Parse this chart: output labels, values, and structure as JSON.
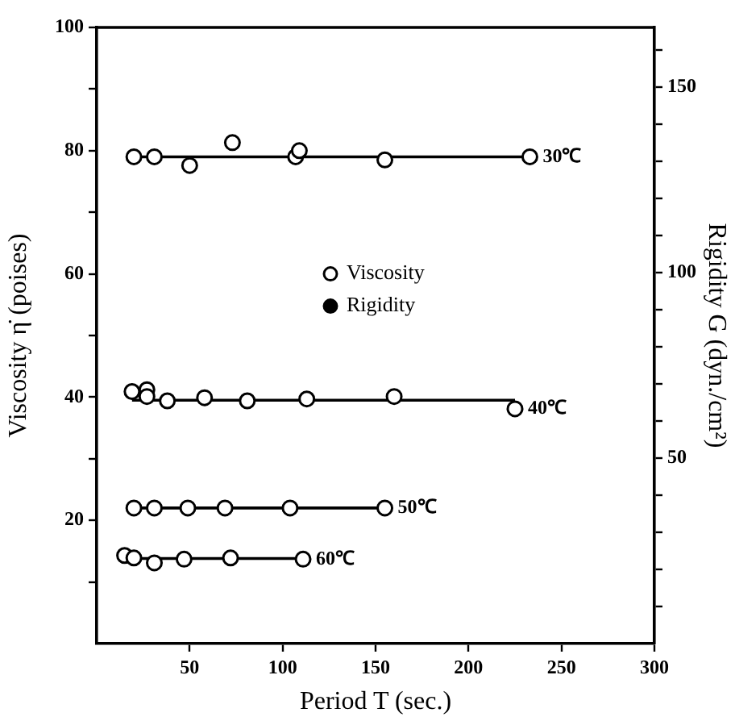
{
  "chart_data": {
    "type": "scatter",
    "xlabel": "Period T (sec.)",
    "ylabel": "Viscosity η̇ (poises)",
    "y2label": "Rigidity G (dyn./cm²)",
    "xlim": [
      0,
      300
    ],
    "xticks": [
      50,
      100,
      150,
      200,
      250,
      300
    ],
    "ylim": [
      0,
      100
    ],
    "yticks": [
      {
        "value": 10,
        "label": null
      },
      20,
      {
        "value": 30,
        "label": null
      },
      40,
      {
        "value": 50,
        "label": null
      },
      60,
      {
        "value": 70,
        "label": null
      },
      80,
      {
        "value": 90,
        "label": null
      },
      100
    ],
    "y2lim": [
      0,
      166
    ],
    "y2ticks": [
      {
        "value": 10,
        "label": null
      },
      {
        "value": 20,
        "label": null
      },
      {
        "value": 30,
        "label": null
      },
      {
        "value": 40,
        "label": null
      },
      50,
      {
        "value": 60,
        "label": null
      },
      {
        "value": 70,
        "label": null
      },
      {
        "value": 80,
        "label": null
      },
      {
        "value": 90,
        "label": null
      },
      100,
      {
        "value": 110,
        "label": null
      },
      {
        "value": 120,
        "label": null
      },
      {
        "value": 130,
        "label": null
      },
      {
        "value": 140,
        "label": null
      },
      150,
      {
        "value": 160,
        "label": null
      }
    ],
    "grid": false,
    "legend": "center",
    "line_style": "solid",
    "series": [
      {
        "name": "Viscosity",
        "marker": "circle",
        "color": "#ffffff",
        "x": [
          20,
          31,
          50,
          73,
          107,
          109,
          155,
          233,
          19,
          27,
          27,
          38,
          58,
          81,
          113,
          160,
          225,
          20,
          31,
          49,
          69,
          104,
          155,
          15,
          20,
          31,
          47,
          72,
          111
        ],
        "values": [
          79,
          79,
          77.6,
          81.3,
          79,
          80,
          78.5,
          79,
          40.9,
          41.2,
          40.1,
          39.4,
          39.9,
          39.4,
          39.7,
          40.1,
          38.1,
          22,
          22,
          22,
          22,
          22,
          22,
          14.3,
          13.9,
          13.1,
          13.7,
          13.9,
          13.7
        ]
      },
      {
        "name": "Rigidity",
        "marker": "circle",
        "color": "#000000"
      },
      {
        "type": "line",
        "color": "#000000",
        "x": [
          20,
          233
        ],
        "values": [
          79,
          79
        ]
      },
      {
        "type": "line",
        "color": "#000000",
        "x": [
          19,
          225
        ],
        "values": [
          39.5,
          39.5
        ]
      },
      {
        "type": "line",
        "color": "#000000",
        "x": [
          20,
          155
        ],
        "values": [
          22,
          22
        ]
      },
      {
        "type": "line",
        "color": "#000000",
        "x": [
          15,
          111
        ],
        "values": [
          13.8,
          13.8
        ]
      }
    ],
    "annotations": [
      {
        "text": "30℃",
        "x": 233,
        "y": 79
      },
      {
        "text": "40℃",
        "x": 225,
        "y": 38.1
      },
      {
        "text": "50℃",
        "x": 155,
        "y": 22
      },
      {
        "text": "60℃",
        "x": 111,
        "y": 13.7
      }
    ]
  }
}
